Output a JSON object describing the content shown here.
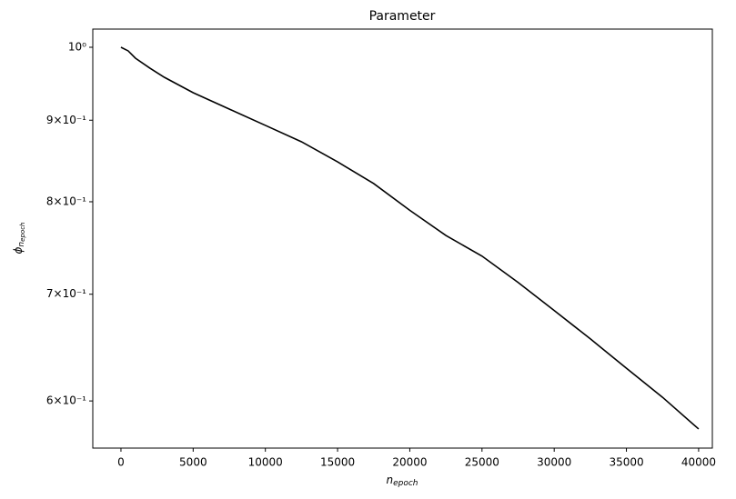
{
  "chart_data": {
    "type": "line",
    "title": "Parameter",
    "xlabel": {
      "base": "n",
      "sub": "epoch"
    },
    "ylabel": {
      "base": "ϕ",
      "sub": "n",
      "subsub": "epoch"
    },
    "x": [
      0,
      500,
      1000,
      2000,
      3000,
      5000,
      7500,
      10000,
      12500,
      15000,
      17500,
      20000,
      22500,
      25000,
      27500,
      30000,
      32500,
      35000,
      37500,
      40000
    ],
    "series": [
      {
        "color": "#000000",
        "values": [
          1.0,
          0.9948,
          0.9844,
          0.9703,
          0.9576,
          0.9365,
          0.9146,
          0.8933,
          0.8724,
          0.8475,
          0.8213,
          0.7902,
          0.762,
          0.7396,
          0.712,
          0.6837,
          0.6563,
          0.629,
          0.6032,
          0.5762
        ]
      }
    ],
    "xlim": [
      -1950,
      40950
    ],
    "xticks": [
      0,
      5000,
      10000,
      15000,
      20000,
      25000,
      30000,
      35000,
      40000
    ],
    "ylim": [
      0.5605,
      1.0266
    ],
    "yscale": "log",
    "yticks": [
      {
        "value": 1,
        "label": "10⁰"
      },
      {
        "value": 0.9,
        "label": "9×10⁻¹"
      },
      {
        "value": 0.8,
        "label": "8×10⁻¹"
      },
      {
        "value": 0.7,
        "label": "7×10⁻¹"
      },
      {
        "value": 0.6,
        "label": "6×10⁻¹"
      }
    ],
    "grid": false
  }
}
